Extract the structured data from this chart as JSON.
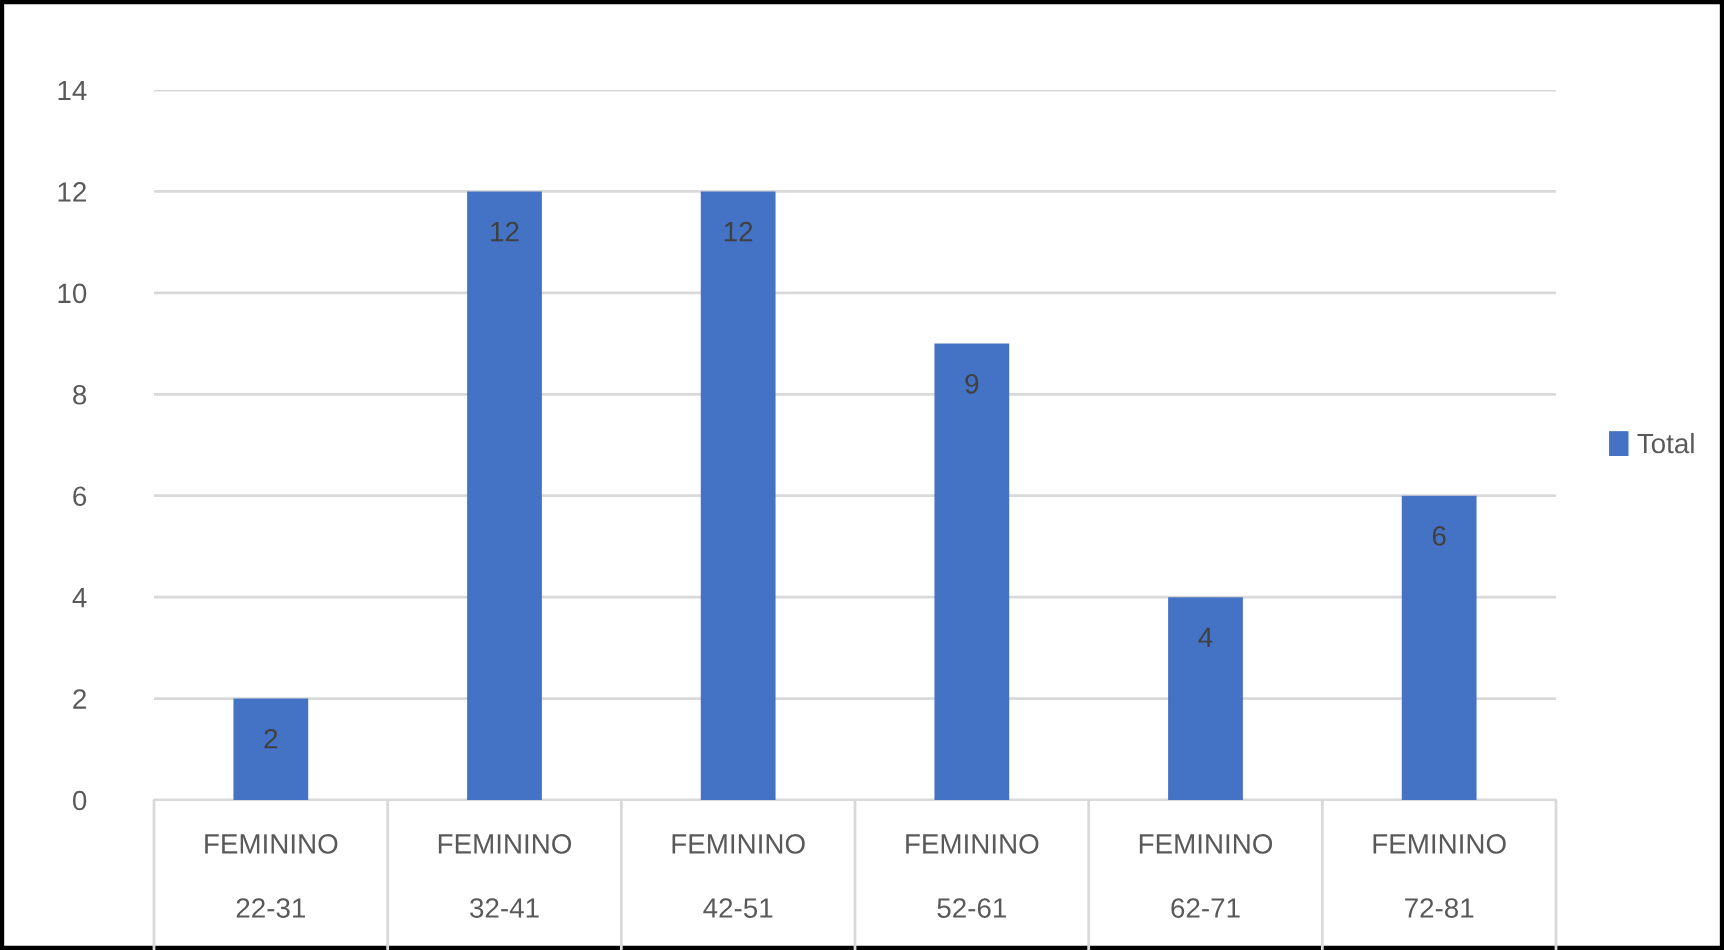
{
  "chart_data": {
    "type": "bar",
    "categories": [
      "FEMININO\n22-31",
      "FEMININO\n32-41",
      "FEMININO\n42-51",
      "FEMININO\n52-61",
      "FEMININO\n62-71",
      "FEMININO\n72-81"
    ],
    "series": [
      {
        "name": "Total",
        "color": "#4472c4",
        "values": [
          2,
          12,
          12,
          9,
          4,
          6
        ]
      }
    ],
    "ylim": [
      0,
      14
    ],
    "yticks": [
      0,
      2,
      4,
      6,
      8,
      10,
      12,
      14
    ],
    "grid": "y",
    "legend": "right",
    "data_labels": true
  }
}
